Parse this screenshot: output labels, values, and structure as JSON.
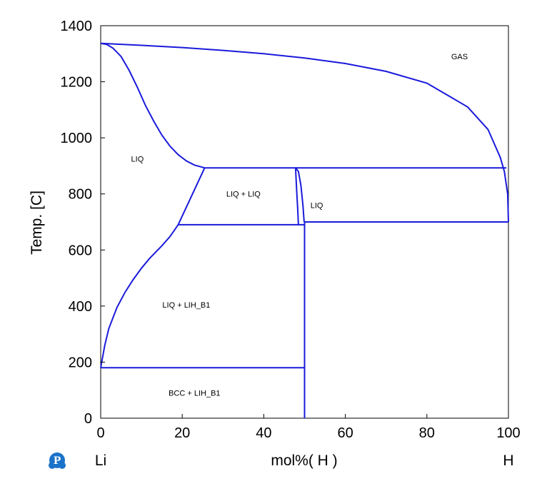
{
  "chart_data": {
    "type": "line",
    "xlabel": "mol%(  H  )",
    "ylabel": "Temp.  [C]",
    "xlim": [
      0,
      100
    ],
    "ylim": [
      0,
      1400
    ],
    "x_ticks": [
      0,
      20,
      40,
      60,
      80,
      100
    ],
    "y_ticks": [
      0,
      200,
      400,
      600,
      800,
      1000,
      1200,
      1400
    ],
    "left_component": "Li",
    "right_component": "H",
    "grid": false,
    "line_color": "#1a1adb",
    "logo_icon": "pandat-p-logo",
    "regions": [
      {
        "label": "GAS",
        "x": 88,
        "y": 1280
      },
      {
        "label": "LIQ",
        "x": 9,
        "y": 915
      },
      {
        "label": "LIQ + LIQ",
        "x": 35,
        "y": 790
      },
      {
        "label": "LIQ",
        "x": 53,
        "y": 750
      },
      {
        "label": "LIQ + LIH_B1",
        "x": 21,
        "y": 395
      },
      {
        "label": "BCC + LIH_B1",
        "x": 23,
        "y": 80
      }
    ],
    "series": [
      {
        "points": [
          [
            0,
            1337
          ],
          [
            10,
            1330
          ],
          [
            20,
            1322
          ],
          [
            30,
            1312
          ],
          [
            40,
            1300
          ],
          [
            50,
            1285
          ],
          [
            60,
            1265
          ],
          [
            70,
            1237
          ],
          [
            80,
            1195
          ],
          [
            90,
            1110
          ],
          [
            95,
            1030
          ],
          [
            98,
            930
          ],
          [
            99,
            880
          ],
          [
            99.8,
            800
          ],
          [
            100,
            700
          ]
        ]
      },
      {
        "points": [
          [
            0,
            1337
          ],
          [
            1.5,
            1333
          ],
          [
            3,
            1320
          ],
          [
            5,
            1290
          ],
          [
            7,
            1240
          ],
          [
            9,
            1180
          ],
          [
            11,
            1115
          ],
          [
            13,
            1060
          ],
          [
            15,
            1010
          ],
          [
            17,
            970
          ],
          [
            19,
            940
          ],
          [
            21,
            918
          ],
          [
            23,
            903
          ],
          [
            25.5,
            893
          ]
        ]
      },
      {
        "points": [
          [
            25.5,
            893
          ],
          [
            99.5,
            893
          ]
        ]
      },
      {
        "points": [
          [
            25.5,
            893
          ],
          [
            19,
            690
          ]
        ]
      },
      {
        "points": [
          [
            19,
            690
          ],
          [
            50,
            690
          ]
        ]
      },
      {
        "points": [
          [
            0,
            180
          ],
          [
            1,
            260
          ],
          [
            2,
            320
          ],
          [
            4,
            395
          ],
          [
            6,
            450
          ],
          [
            8,
            495
          ],
          [
            10,
            535
          ],
          [
            12,
            570
          ],
          [
            15,
            615
          ],
          [
            17,
            648
          ],
          [
            19,
            690
          ]
        ]
      },
      {
        "points": [
          [
            0,
            180
          ],
          [
            50,
            180
          ]
        ]
      },
      {
        "points": [
          [
            50,
            0
          ],
          [
            50,
            700
          ]
        ]
      },
      {
        "points": [
          [
            50,
            700
          ],
          [
            100,
            700
          ]
        ]
      },
      {
        "points": [
          [
            47.8,
            893
          ],
          [
            47.9,
            860
          ],
          [
            48.1,
            800
          ],
          [
            48.3,
            750
          ],
          [
            48.5,
            690
          ]
        ]
      },
      {
        "points": [
          [
            47.8,
            893
          ],
          [
            48.5,
            880
          ],
          [
            49.1,
            830
          ],
          [
            49.6,
            760
          ],
          [
            49.9,
            700
          ]
        ]
      }
    ]
  }
}
